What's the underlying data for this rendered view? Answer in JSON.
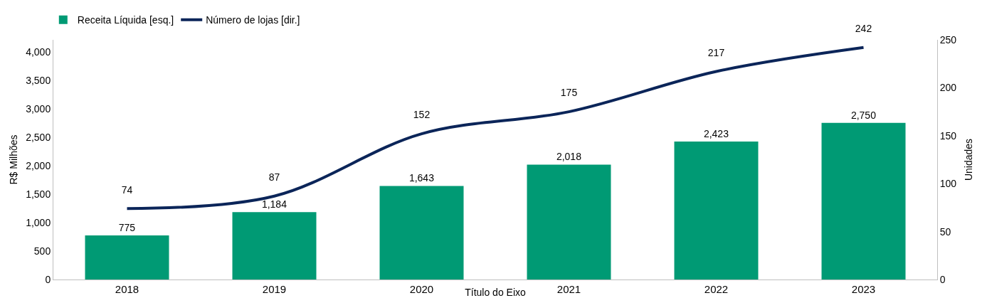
{
  "chart_data": {
    "type": "bar",
    "xlabel": "Título do Eixo",
    "ylabel": "R$ Milhões",
    "y2label": "Unidades",
    "categories": [
      "2018",
      "2019",
      "2020",
      "2021",
      "2022",
      "2023"
    ],
    "series": [
      {
        "name": "Receita Líquida [esq.]",
        "color": "#009a74",
        "values": [
          775,
          1184,
          1643,
          2018,
          2423,
          2750
        ],
        "value_labels": [
          "775",
          "1,184",
          "1,643",
          "2,018",
          "2,423",
          "2,750"
        ]
      },
      {
        "name": "Número de lojas [dir.]",
        "type": "line",
        "axis": "y2",
        "color": "#0b2559",
        "values": [
          74,
          87,
          152,
          175,
          217,
          242
        ],
        "value_labels": [
          "74",
          "87",
          "152",
          "175",
          "217",
          "242"
        ]
      }
    ],
    "ylim": [
      0,
      4210
    ],
    "yticks": [
      0,
      500,
      {
        "value": 1000,
        "label": "1,000"
      },
      {
        "value": 1500,
        "label": "1,500"
      },
      {
        "value": 2000,
        "label": "2,000"
      },
      {
        "value": 2500,
        "label": "2,500"
      },
      {
        "value": 3000,
        "label": "3,000"
      },
      {
        "value": 3500,
        "label": "3,500"
      },
      {
        "value": 4000,
        "label": "4,000"
      }
    ],
    "y2lim": [
      0,
      250
    ],
    "y2ticks": [
      0,
      50,
      100,
      150,
      200,
      250
    ],
    "grid": false,
    "legend": "top left",
    "marker": "none",
    "line_style": "solid"
  }
}
